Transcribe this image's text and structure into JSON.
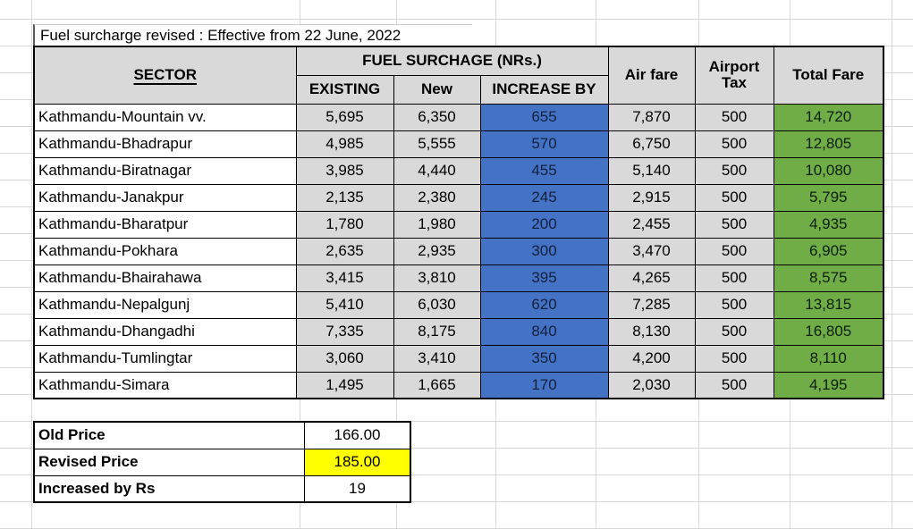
{
  "sheet": {
    "title": "Fuel surcharge revised : Effective from 22 June, 2022"
  },
  "fare_table": {
    "headers": {
      "sector": "SECTOR",
      "fuel_surcharge_group": "FUEL SURCHAGE (NRs.)",
      "existing": "EXISTING",
      "new": "New",
      "increase_by": "INCREASE BY",
      "air_fare": "Air fare",
      "airport_tax": "Airport Tax",
      "total_fare": "Total Fare"
    },
    "rows": [
      {
        "sector": "Kathmandu-Mountain vv.",
        "existing": "5,695",
        "new": "6,350",
        "increase_by": "655",
        "air_fare": "7,870",
        "airport_tax": "500",
        "total_fare": "14,720"
      },
      {
        "sector": "Kathmandu-Bhadrapur",
        "existing": "4,985",
        "new": "5,555",
        "increase_by": "570",
        "air_fare": "6,750",
        "airport_tax": "500",
        "total_fare": "12,805"
      },
      {
        "sector": "Kathmandu-Biratnagar",
        "existing": "3,985",
        "new": "4,440",
        "increase_by": "455",
        "air_fare": "5,140",
        "airport_tax": "500",
        "total_fare": "10,080"
      },
      {
        "sector": "Kathmandu-Janakpur",
        "existing": "2,135",
        "new": "2,380",
        "increase_by": "245",
        "air_fare": "2,915",
        "airport_tax": "500",
        "total_fare": "5,795"
      },
      {
        "sector": "Kathmandu-Bharatpur",
        "existing": "1,780",
        "new": "1,980",
        "increase_by": "200",
        "air_fare": "2,455",
        "airport_tax": "500",
        "total_fare": "4,935"
      },
      {
        "sector": "Kathmandu-Pokhara",
        "existing": "2,635",
        "new": "2,935",
        "increase_by": "300",
        "air_fare": "3,470",
        "airport_tax": "500",
        "total_fare": "6,905"
      },
      {
        "sector": "Kathmandu-Bhairahawa",
        "existing": "3,415",
        "new": "3,810",
        "increase_by": "395",
        "air_fare": "4,265",
        "airport_tax": "500",
        "total_fare": "8,575"
      },
      {
        "sector": "Kathmandu-Nepalgunj",
        "existing": "5,410",
        "new": "6,030",
        "increase_by": "620",
        "air_fare": "7,285",
        "airport_tax": "500",
        "total_fare": "13,815"
      },
      {
        "sector": "Kathmandu-Dhangadhi",
        "existing": "7,335",
        "new": "8,175",
        "increase_by": "840",
        "air_fare": "8,130",
        "airport_tax": "500",
        "total_fare": "16,805"
      },
      {
        "sector": "Kathmandu-Tumlingtar",
        "existing": "3,060",
        "new": "3,410",
        "increase_by": "350",
        "air_fare": "4,200",
        "airport_tax": "500",
        "total_fare": "8,110"
      },
      {
        "sector": "Kathmandu-Simara",
        "existing": "1,495",
        "new": "1,665",
        "increase_by": "170",
        "air_fare": "2,030",
        "airport_tax": "500",
        "total_fare": "4,195"
      }
    ]
  },
  "price_summary": {
    "rows": [
      {
        "label": "Old Price",
        "value": "166.00",
        "highlight": false
      },
      {
        "label": "Revised Price",
        "value": "185.00",
        "highlight": true
      },
      {
        "label": "Increased by Rs",
        "value": "19",
        "highlight": false
      }
    ]
  },
  "colors": {
    "header_fill": "#D9D9D9",
    "gray_cell_fill": "#D9D9D9",
    "increase_by_fill": "#4472C4",
    "total_fare_fill": "#70AD47",
    "highlight_fill": "#FFFF00",
    "table_border": "#000000",
    "gridline": "#D6D6D6",
    "increase_by_text": "#13203F",
    "total_fare_text": "#0D1F0D"
  }
}
